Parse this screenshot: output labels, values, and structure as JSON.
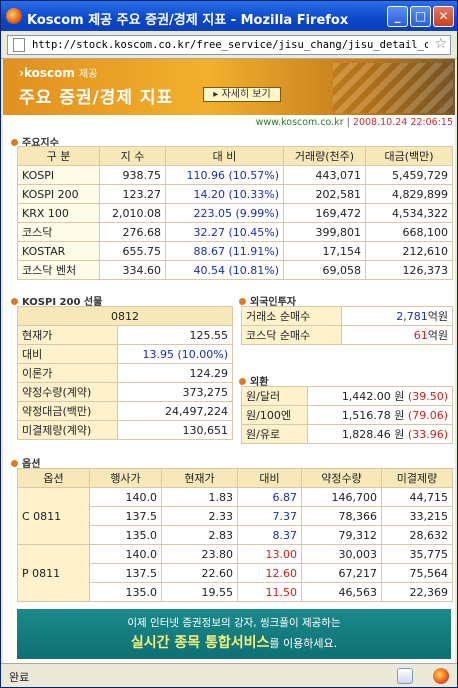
{
  "window": {
    "title": "Koscom 제공 주요 증권/경제 지표 - Mozilla Firefox",
    "url": "http://stock.koscom.co.kr/free_service/jisu_chang/jisu_detail_char"
  },
  "banner": {
    "logo": "›koscom",
    "logo_sub": "제공",
    "title": "주요 증권/경제 지표",
    "more_label": "▸ 자세히 보기"
  },
  "meta": {
    "site": "www.koscom.co.kr",
    "datetime": "2008.10.24  22:06:15"
  },
  "indices": {
    "section": "주요지수",
    "headers": [
      "구 분",
      "지 수",
      "대 비",
      "거래량(천주)",
      "대금(백만)"
    ],
    "rows": [
      [
        "KOSPI",
        "938.75",
        "110.96 (10.57%)",
        "443,071",
        "5,459,729"
      ],
      [
        "KOSPI 200",
        "123.27",
        "14.20 (10.33%)",
        "202,581",
        "4,829,899"
      ],
      [
        "KRX 100",
        "2,010.08",
        "223.05 (9.99%)",
        "169,472",
        "4,534,322"
      ],
      [
        "코스닥",
        "276.68",
        "32.27 (10.45%)",
        "399,801",
        "668,100"
      ],
      [
        "KOSTAR",
        "655.75",
        "88.67 (11.91%)",
        "17,154",
        "212,610"
      ],
      [
        "코스닥 벤처",
        "334.60",
        "40.54 (10.81%)",
        "69,058",
        "126,373"
      ]
    ]
  },
  "futures": {
    "section": "KOSPI 200 선물",
    "code": "0812",
    "rows": [
      [
        "현재가",
        "125.55"
      ],
      [
        "대비",
        "13.95 (10.00%)"
      ],
      [
        "이론가",
        "124.29"
      ],
      [
        "약정수량(계약)",
        "373,275"
      ],
      [
        "약정대금(백만)",
        "24,497,224"
      ],
      [
        "미결제량(계약)",
        "130,651"
      ]
    ]
  },
  "foreign": {
    "section": "외국인투자",
    "rows": [
      [
        "거래소 순매수",
        "2,781",
        "억원"
      ],
      [
        "코스닥 순매수",
        "61",
        "억원"
      ]
    ]
  },
  "fx": {
    "section": "외환",
    "rows": [
      [
        "원/달러",
        "1,442.00 원",
        "(39.50)"
      ],
      [
        "원/100엔",
        "1,516.78 원",
        "(79.06)"
      ],
      [
        "원/유로",
        "1,828.46 원",
        "(33.96)"
      ]
    ]
  },
  "options": {
    "section": "옵션",
    "headers": [
      "옵션",
      "행사가",
      "현재가",
      "대비",
      "약정수량",
      "미결제량"
    ],
    "groups": [
      {
        "name": "C 0811",
        "rows": [
          [
            "140.0",
            "1.83",
            "6.87",
            "146,700",
            "44,715"
          ],
          [
            "137.5",
            "2.33",
            "7.37",
            "78,366",
            "33,215"
          ],
          [
            "135.0",
            "2.83",
            "8.37",
            "79,312",
            "28,632"
          ]
        ]
      },
      {
        "name": "P 0811",
        "rows": [
          [
            "140.0",
            "23.80",
            "13.00",
            "30,003",
            "35,775"
          ],
          [
            "137.5",
            "22.60",
            "12.60",
            "67,217",
            "75,564"
          ],
          [
            "135.0",
            "19.55",
            "11.50",
            "46,563",
            "22,369"
          ]
        ]
      }
    ]
  },
  "footer": {
    "line1": "이제 인터넷 증권정보의 강자, 씽크풀이 제공하는",
    "highlight": "실시간 종목 통합서비스",
    "line2_tail": "를 이용하세요."
  },
  "status": {
    "text": "완료"
  }
}
